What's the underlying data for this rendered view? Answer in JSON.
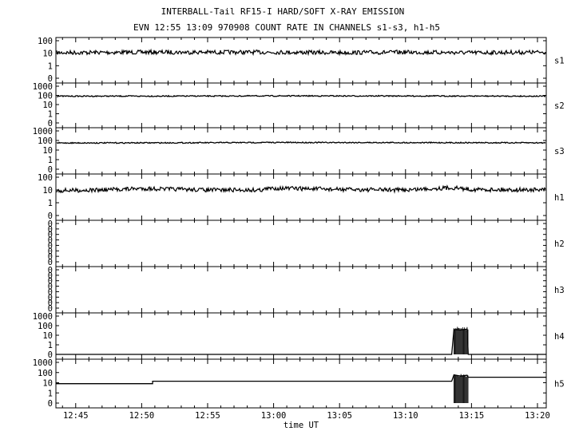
{
  "header": {
    "title": "INTERBALL-Tail RF15-I HARD/SOFT X-RAY EMISSION",
    "subtitle": "EVN 12:55 13:09 970908  COUNT RATE IN CHANNELS s1-s3, h1-h5"
  },
  "chart_data": {
    "type": "line",
    "title": "INTERBALL-Tail RF15-I HARD/SOFT X-RAY EMISSION",
    "subtitle": "EVN 12:55 13:09 970908  COUNT RATE IN CHANNELS s1-s3, h1-h5",
    "xlabel": "time UT",
    "x_ticks": [
      "12:45",
      "12:50",
      "12:55",
      "13:00",
      "13:05",
      "13:10",
      "13:15",
      "13:20"
    ],
    "xlim": [
      "12:43:30",
      "13:20:40"
    ],
    "yscale": "log",
    "grid": false,
    "panels": [
      {
        "name": "s1",
        "y_ticks": [
          "100",
          "10",
          "1",
          "0"
        ],
        "series": [
          {
            "name": "s1",
            "style": "noisy",
            "points": [
              [
                "12:43:30",
                11
              ],
              [
                "12:50:00",
                12
              ],
              [
                "12:55:00",
                12
              ],
              [
                "13:00:00",
                12
              ],
              [
                "13:05:00",
                11
              ],
              [
                "13:10:00",
                12
              ],
              [
                "13:15:00",
                11
              ],
              [
                "13:20:40",
                12
              ]
            ]
          }
        ]
      },
      {
        "name": "s2",
        "y_ticks": [
          "1000",
          "100",
          "10",
          "1",
          "0"
        ],
        "series": [
          {
            "name": "s2",
            "style": "smooth",
            "points": [
              [
                "12:43:30",
                82
              ],
              [
                "12:55:00",
                84
              ],
              [
                "13:00:00",
                88
              ],
              [
                "13:10:00",
                86
              ],
              [
                "13:20:40",
                82
              ]
            ]
          }
        ]
      },
      {
        "name": "s3",
        "y_ticks": [
          "1000",
          "100",
          "10",
          "1",
          "0"
        ],
        "series": [
          {
            "name": "s3",
            "style": "smooth",
            "points": [
              [
                "12:43:30",
                55
              ],
              [
                "12:55:00",
                58
              ],
              [
                "13:00:00",
                62
              ],
              [
                "13:10:00",
                60
              ],
              [
                "13:20:40",
                57
              ]
            ]
          }
        ]
      },
      {
        "name": "h1",
        "y_ticks": [
          "100",
          "10",
          "1",
          "0"
        ],
        "series": [
          {
            "name": "h1",
            "style": "noisy",
            "points": [
              [
                "12:43:30",
                9
              ],
              [
                "12:47:00",
                10
              ],
              [
                "12:50:00",
                13
              ],
              [
                "12:55:00",
                10
              ],
              [
                "12:59:00",
                10
              ],
              [
                "13:00:00",
                14
              ],
              [
                "13:05:00",
                11
              ],
              [
                "13:10:00",
                10
              ],
              [
                "13:13:30",
                15
              ],
              [
                "13:15:00",
                11
              ],
              [
                "13:20:40",
                10
              ]
            ]
          }
        ]
      },
      {
        "name": "h2",
        "y_ticks": [
          "0",
          "0",
          "0",
          "0",
          "0",
          "0",
          "0",
          "0"
        ],
        "series": []
      },
      {
        "name": "h3",
        "y_ticks": [
          "0",
          "0",
          "0",
          "0",
          "0",
          "0",
          "0",
          "0"
        ],
        "series": []
      },
      {
        "name": "h4",
        "y_ticks": [
          "1000",
          "100",
          "10",
          "1",
          "0"
        ],
        "series": [
          {
            "name": "h4",
            "style": "burst",
            "points": [
              [
                "12:43:30",
                0
              ],
              [
                "13:13:30",
                0
              ],
              [
                "13:13:40",
                40
              ],
              [
                "13:14:10",
                35
              ],
              [
                "13:14:40",
                45
              ],
              [
                "13:14:45",
                0
              ],
              [
                "13:20:40",
                0
              ]
            ]
          }
        ]
      },
      {
        "name": "h5",
        "y_ticks": [
          "1000",
          "100",
          "10",
          "1",
          "0"
        ],
        "series": [
          {
            "name": "h5",
            "style": "step",
            "points": [
              [
                "12:43:30",
                8
              ],
              [
                "12:50:50",
                8
              ],
              [
                "12:50:50",
                14
              ],
              [
                "13:13:30",
                14
              ],
              [
                "13:13:40",
                60
              ],
              [
                "13:14:10",
                45
              ],
              [
                "13:14:40",
                55
              ],
              [
                "13:14:45",
                35
              ],
              [
                "13:20:40",
                35
              ]
            ]
          }
        ]
      }
    ]
  }
}
